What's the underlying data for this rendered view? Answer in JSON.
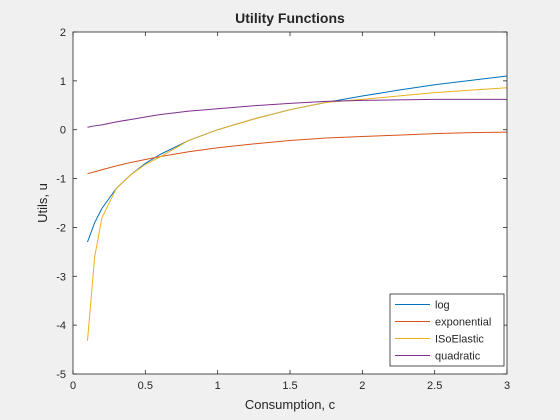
{
  "chart_data": {
    "type": "line",
    "title": "Utility Functions",
    "xlabel": "Consumption, c",
    "ylabel": "Utils, u",
    "xlim": [
      0,
      3
    ],
    "ylim": [
      -5,
      2
    ],
    "xticks": [
      0,
      0.5,
      1,
      1.5,
      2,
      2.5,
      3
    ],
    "xtick_labels": [
      "0",
      "0.5",
      "1",
      "1.5",
      "2",
      "2.5",
      "3"
    ],
    "yticks": [
      -5,
      -4,
      -3,
      -2,
      -1,
      0,
      1,
      2
    ],
    "ytick_labels": [
      "-5",
      "-4",
      "-3",
      "-2",
      "-1",
      "0",
      "1",
      "2"
    ],
    "grid": false,
    "legend_position": "bottom-right",
    "x": [
      0.1,
      0.15,
      0.2,
      0.3,
      0.4,
      0.5,
      0.6,
      0.8,
      1.0,
      1.25,
      1.5,
      1.75,
      2.0,
      2.25,
      2.5,
      2.75,
      3.0
    ],
    "series": [
      {
        "name": "log",
        "color": "#0072BD",
        "values": [
          -2.3,
          -1.9,
          -1.61,
          -1.2,
          -0.92,
          -0.69,
          -0.51,
          -0.22,
          0.0,
          0.22,
          0.41,
          0.56,
          0.69,
          0.81,
          0.92,
          1.01,
          1.1
        ]
      },
      {
        "name": "exponential",
        "color": "#D95319",
        "values": [
          -0.9,
          -0.86,
          -0.82,
          -0.74,
          -0.67,
          -0.61,
          -0.55,
          -0.45,
          -0.37,
          -0.29,
          -0.22,
          -0.17,
          -0.14,
          -0.11,
          -0.08,
          -0.06,
          -0.05
        ]
      },
      {
        "name": "ISoElastic",
        "color": "#EDB120",
        "values": [
          -4.32,
          -2.6,
          -1.8,
          -1.2,
          -0.92,
          -0.71,
          -0.56,
          -0.22,
          0.0,
          0.22,
          0.41,
          0.56,
          0.62,
          0.69,
          0.76,
          0.81,
          0.86
        ]
      },
      {
        "name": "quadratic",
        "color": "#7E2F8E",
        "values": [
          0.05,
          0.08,
          0.1,
          0.16,
          0.21,
          0.26,
          0.31,
          0.38,
          0.43,
          0.49,
          0.54,
          0.58,
          0.6,
          0.61,
          0.62,
          0.62,
          0.62
        ]
      }
    ]
  }
}
